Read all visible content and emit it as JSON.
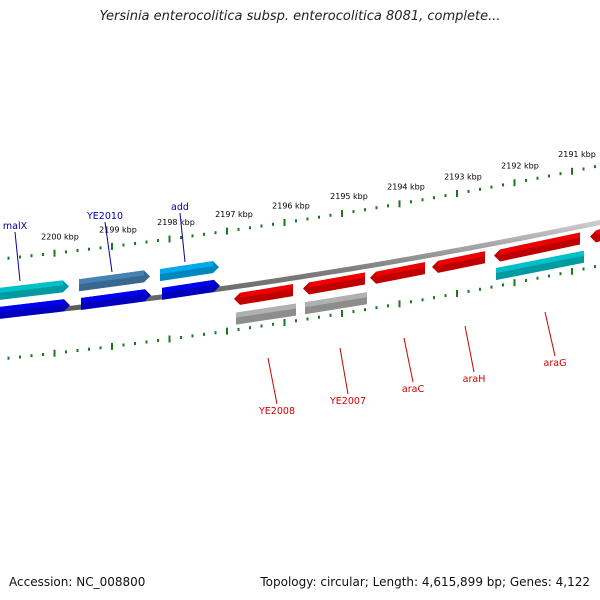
{
  "title": "Yersinia enterocolitica subsp. enterocolitica 8081, complete...",
  "footer": {
    "accession": "Accession: NC_008800",
    "summary": "Topology: circular; Length: 4,615,899 bp; Genes: 4,122"
  },
  "colors": {
    "backbone": "#808080",
    "tick": "#1a7a1a",
    "forward_label": "#0000aa",
    "reverse_label": "#cc0000"
  },
  "scale_labels": [
    "2191 kbp",
    "2192 kbp",
    "2193 kbp",
    "2194 kbp",
    "2195 kbp",
    "2196 kbp",
    "2197 kbp",
    "2198 kbp",
    "2199 kbp",
    "2200 kbp"
  ],
  "genes": [
    {
      "name": "malX",
      "strand": "forward",
      "color": "#00c0c8"
    },
    {
      "name": "",
      "strand": "forward",
      "color": "#0000ee"
    },
    {
      "name": "YE2010",
      "strand": "forward",
      "color": "#4682b4"
    },
    {
      "name": "",
      "strand": "forward",
      "color": "#0000ee"
    },
    {
      "name": "add",
      "strand": "forward",
      "color": "#00aaee"
    },
    {
      "name": "",
      "strand": "forward",
      "color": "#0000ee"
    },
    {
      "name": "YE2008",
      "strand": "reverse",
      "color": "#ee0000"
    },
    {
      "name": "",
      "strand": "reverse",
      "color": "#b0b0b0"
    },
    {
      "name": "YE2007",
      "strand": "reverse",
      "color": "#ee0000"
    },
    {
      "name": "",
      "strand": "reverse",
      "color": "#b0b0b0"
    },
    {
      "name": "araC",
      "strand": "reverse",
      "color": "#ee0000"
    },
    {
      "name": "araH",
      "strand": "reverse",
      "color": "#ee0000"
    },
    {
      "name": "araG",
      "strand": "reverse",
      "color": "#ee0000"
    },
    {
      "name": "",
      "strand": "reverse",
      "color": "#00c0c8"
    },
    {
      "name": "",
      "strand": "reverse",
      "color": "#ee0000"
    }
  ]
}
